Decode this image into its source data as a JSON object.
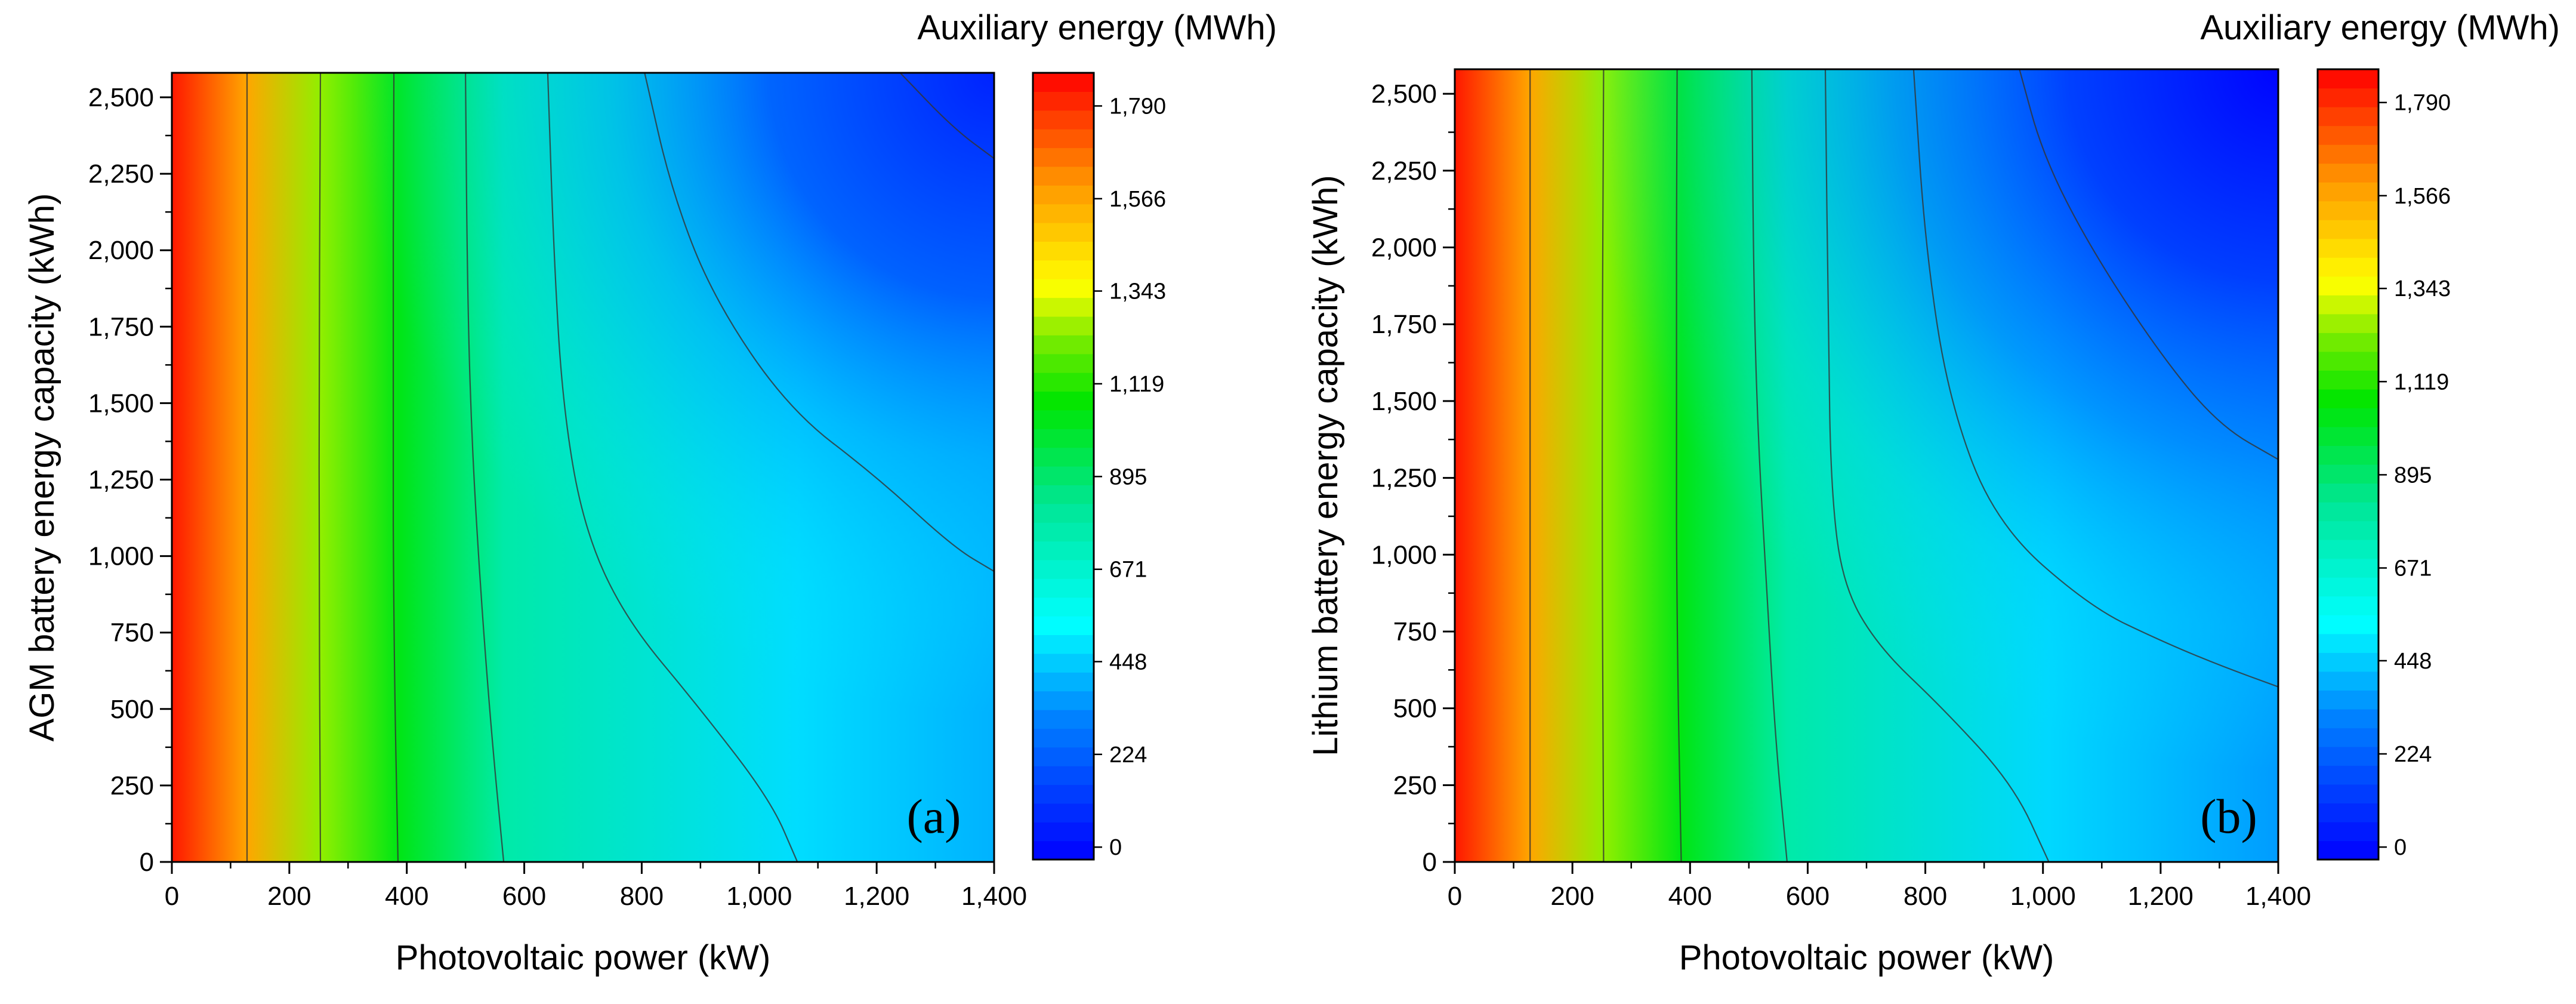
{
  "chart_data": [
    {
      "type": "heatmap",
      "panel_tag": "(a)",
      "xlabel": "Photovoltaic power (kW)",
      "ylabel": "AGM battery energy capacity (kWh)",
      "colorbar_title": "Auxiliary energy (MWh)",
      "xlim": [
        0,
        1400
      ],
      "ylim": [
        0,
        2580
      ],
      "x_ticks": [
        0,
        200,
        400,
        600,
        800,
        1000,
        1200,
        1400
      ],
      "x_tick_labels": [
        "0",
        "200",
        "400",
        "600",
        "800",
        "1,000",
        "1,200",
        "1,400"
      ],
      "y_ticks": [
        0,
        250,
        500,
        750,
        1000,
        1250,
        1500,
        1750,
        2000,
        2250,
        2500
      ],
      "y_tick_labels": [
        "0",
        "250",
        "500",
        "750",
        "1,000",
        "1,250",
        "1,500",
        "1,750",
        "2,000",
        "2,250",
        "2,500"
      ],
      "colorbar_range": [
        -30,
        1870
      ],
      "colorbar_ticks": [
        0,
        224,
        448,
        671,
        895,
        1119,
        1343,
        1566,
        1790
      ],
      "colorbar_tick_labels": [
        "0",
        "224",
        "448",
        "671",
        "895",
        "1,119",
        "1,343",
        "1,566",
        "1,790"
      ],
      "contour_levels_MWh": [
        1566,
        1119,
        895,
        671,
        448,
        224
      ],
      "contour_lines": [
        {
          "level": 1566,
          "points": [
            [
              128,
              0
            ],
            [
              128,
              2580
            ]
          ]
        },
        {
          "level": 1119,
          "points": [
            [
              253,
              0
            ],
            [
              250,
              1290
            ],
            [
              253,
              2580
            ]
          ]
        },
        {
          "level": 895,
          "points": [
            [
              385,
              0
            ],
            [
              378,
              700
            ],
            [
              376,
              1500
            ],
            [
              378,
              2580
            ]
          ]
        },
        {
          "level": 671,
          "points": [
            [
              565,
              0
            ],
            [
              545,
              400
            ],
            [
              525,
              900
            ],
            [
              510,
              1400
            ],
            [
              503,
              1900
            ],
            [
              500,
              2580
            ]
          ]
        },
        {
          "level": 448,
          "points": [
            [
              1065,
              0
            ],
            [
              1020,
              200
            ],
            [
              900,
              500
            ],
            [
              770,
              800
            ],
            [
              700,
              1100
            ],
            [
              665,
              1500
            ],
            [
              650,
              2000
            ],
            [
              640,
              2580
            ]
          ]
        },
        {
          "level": 224,
          "points": [
            [
              1400,
              950
            ],
            [
              1330,
              1030
            ],
            [
              1200,
              1260
            ],
            [
              1050,
              1480
            ],
            [
              920,
              1850
            ],
            [
              850,
              2200
            ],
            [
              805,
              2580
            ]
          ]
        },
        {
          "level": 0,
          "points": [
            [
              1400,
              2300
            ],
            [
              1330,
              2400
            ],
            [
              1240,
              2580
            ]
          ]
        }
      ]
    },
    {
      "type": "heatmap",
      "panel_tag": "(b)",
      "xlabel": "Photovoltaic power (kW)",
      "ylabel": "Lithium battery energy capacity (kWh)",
      "colorbar_title": "Auxiliary energy (MWh)",
      "xlim": [
        0,
        1400
      ],
      "ylim": [
        0,
        2580
      ],
      "x_ticks": [
        0,
        200,
        400,
        600,
        800,
        1000,
        1200,
        1400
      ],
      "x_tick_labels": [
        "0",
        "200",
        "400",
        "600",
        "800",
        "1,000",
        "1,200",
        "1,400"
      ],
      "y_ticks": [
        0,
        250,
        500,
        750,
        1000,
        1250,
        1500,
        1750,
        2000,
        2250,
        2500
      ],
      "y_tick_labels": [
        "0",
        "250",
        "500",
        "750",
        "1,000",
        "1,250",
        "1,500",
        "1,750",
        "2,000",
        "2,250",
        "2,500"
      ],
      "colorbar_range": [
        -30,
        1870
      ],
      "colorbar_ticks": [
        0,
        224,
        448,
        671,
        895,
        1119,
        1343,
        1566,
        1790
      ],
      "colorbar_tick_labels": [
        "0",
        "224",
        "448",
        "671",
        "895",
        "1,119",
        "1,343",
        "1,566",
        "1,790"
      ],
      "contour_levels_MWh": [
        1566,
        1119,
        895,
        671,
        448,
        224
      ],
      "contour_lines": [
        {
          "level": 1566,
          "points": [
            [
              128,
              0
            ],
            [
              128,
              2580
            ]
          ]
        },
        {
          "level": 1119,
          "points": [
            [
              253,
              0
            ],
            [
              250,
              1290
            ],
            [
              253,
              2580
            ]
          ]
        },
        {
          "level": 895,
          "points": [
            [
              385,
              0
            ],
            [
              378,
              700
            ],
            [
              376,
              1500
            ],
            [
              378,
              2580
            ]
          ]
        },
        {
          "level": 671,
          "points": [
            [
              565,
              0
            ],
            [
              545,
              400
            ],
            [
              530,
              900
            ],
            [
              515,
              1400
            ],
            [
              508,
              1900
            ],
            [
              505,
              2580
            ]
          ]
        },
        {
          "level": 448,
          "points": [
            [
              1010,
              0
            ],
            [
              950,
              250
            ],
            [
              830,
              500
            ],
            [
              720,
              700
            ],
            [
              660,
              900
            ],
            [
              640,
              1200
            ],
            [
              635,
              1700
            ],
            [
              630,
              2580
            ]
          ]
        },
        {
          "level": 224,
          "points": [
            [
              1400,
              570
            ],
            [
              1300,
              640
            ],
            [
              1200,
              720
            ],
            [
              1080,
              830
            ],
            [
              920,
              1100
            ],
            [
              840,
              1500
            ],
            [
              800,
              2000
            ],
            [
              780,
              2580
            ]
          ]
        },
        {
          "level": 0,
          "points": [
            [
              1400,
              1310
            ],
            [
              1300,
              1420
            ],
            [
              1200,
              1650
            ],
            [
              1080,
              2000
            ],
            [
              1000,
              2300
            ],
            [
              960,
              2580
            ]
          ]
        }
      ]
    }
  ]
}
